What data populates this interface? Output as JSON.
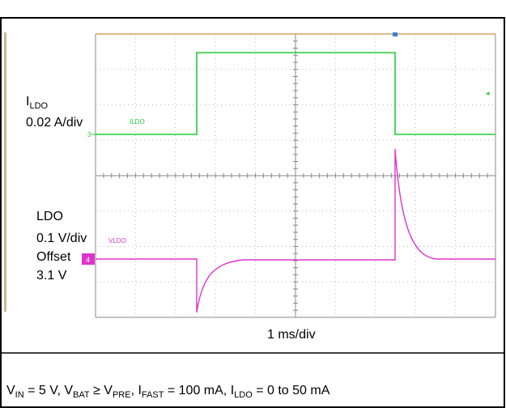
{
  "labels": {
    "current_name": {
      "main": "I",
      "sub": "LDO"
    },
    "current_scale": "0.02 A/div",
    "voltage_name": "LDO",
    "voltage_scale": "0.1 V/div",
    "offset_label": "Offset",
    "offset_value": "3.1 V",
    "time_scale": "1 ms/div"
  },
  "scope": {
    "ch3_tag": "ILDO",
    "ch3_marker": "3",
    "ch4_tag": "VLDO",
    "ch4_marker": "4"
  },
  "caption": [
    "V",
    "IN",
    " = 5 V, V",
    "BAT",
    " ≥ V",
    "PRE",
    ", I",
    "FAST",
    " = 100 mA, I",
    "LDO",
    " = 0 to 50 mA"
  ]
}
